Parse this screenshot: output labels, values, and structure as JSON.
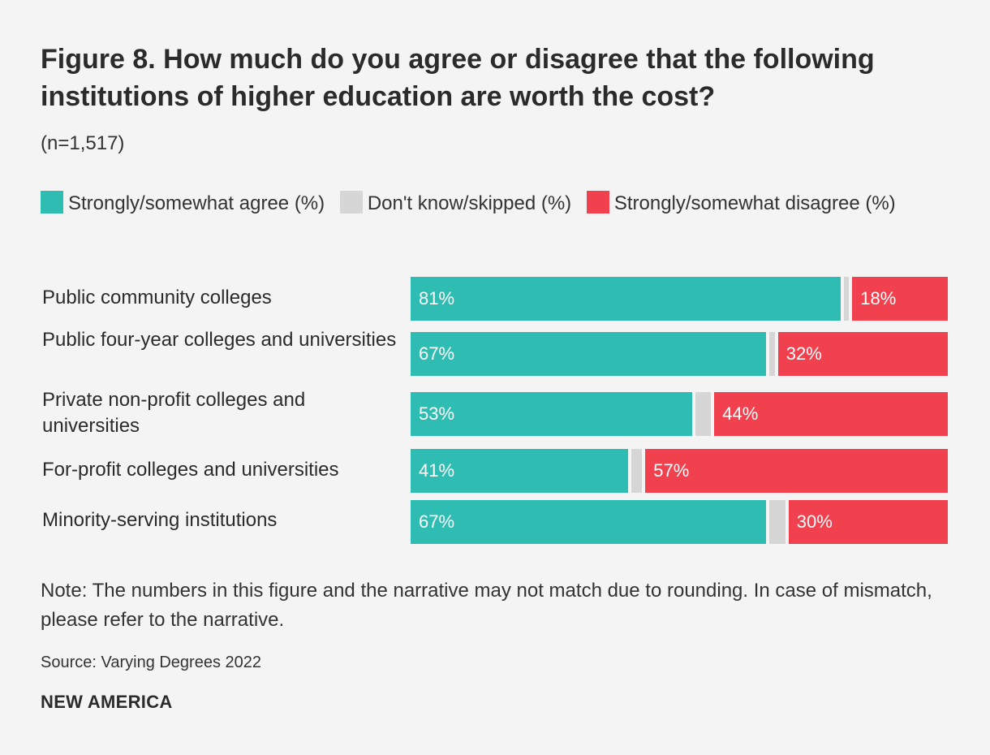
{
  "title": "Figure 8. How much do you agree or disagree that the following institutions of higher education are worth the cost?",
  "subtitle": "(n=1,517)",
  "legend": [
    {
      "label": "Strongly/somewhat agree (%)",
      "color": "#2fbdb3"
    },
    {
      "label": "Don't know/skipped (%)",
      "color": "#d6d6d6"
    },
    {
      "label": "Strongly/somewhat disagree (%)",
      "color": "#f2414e"
    }
  ],
  "chart_data": {
    "type": "bar",
    "orientation": "horizontal",
    "stacked": true,
    "categories": [
      "Public community colleges",
      "Public four-year colleges and universities",
      "Private non-profit colleges and universities",
      "For-profit colleges and universities",
      "Minority-serving institutions"
    ],
    "series": [
      {
        "name": "Strongly/somewhat agree (%)",
        "values": [
          81,
          67,
          53,
          41,
          67
        ],
        "color": "#2fbdb3"
      },
      {
        "name": "Don't know/skipped (%)",
        "values": [
          1,
          1,
          3,
          2,
          3
        ],
        "color": "#d6d6d6"
      },
      {
        "name": "Strongly/somewhat disagree (%)",
        "values": [
          18,
          32,
          44,
          57,
          30
        ],
        "color": "#f2414e"
      }
    ],
    "data_labels": {
      "agree": [
        "81%",
        "67%",
        "53%",
        "41%",
        "67%"
      ],
      "disagree": [
        "18%",
        "32%",
        "44%",
        "57%",
        "30%"
      ]
    },
    "xlim": [
      0,
      100
    ],
    "title": "Figure 8. How much do you agree or disagree that the following institutions of higher education are worth the cost?",
    "xlabel": "",
    "ylabel": ""
  },
  "note": "Note: The numbers in this figure and the narrative may not match due to rounding. In case of mismatch, please refer to the narrative.",
  "source": "Source: Varying Degrees 2022",
  "brand": "NEW AMERICA"
}
